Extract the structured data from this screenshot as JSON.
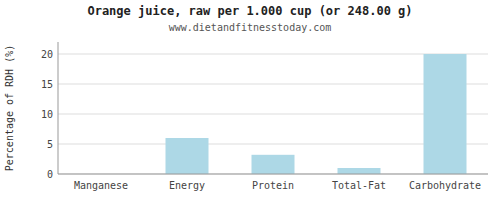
{
  "chart_data": {
    "type": "bar",
    "title": "Orange juice, raw per 1.000 cup (or 248.00 g)",
    "subtitle": "www.dietandfitnesstoday.com",
    "ylabel": "Percentage of RDH (%)",
    "categories": [
      "Manganese",
      "Energy",
      "Protein",
      "Total-Fat",
      "Carbohydrate"
    ],
    "values": [
      0.0,
      6.0,
      3.2,
      1.0,
      20.0
    ],
    "color": "#add8e6",
    "ylim": [
      0,
      22
    ],
    "yticks": [
      0,
      5,
      10,
      15,
      20
    ],
    "grid": true
  }
}
